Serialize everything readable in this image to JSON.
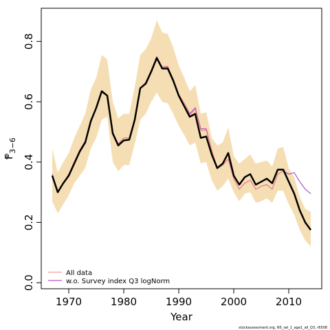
{
  "chart_data": {
    "type": "line",
    "xlabel": "Year",
    "ylabel": "F",
    "ylabel_sub": "3−6",
    "xlim": [
      1965,
      2016
    ],
    "ylim": [
      -0.02,
      0.91
    ],
    "x_ticks": [
      1970,
      1980,
      1990,
      2000,
      2010
    ],
    "y_ticks": [
      0.0,
      0.2,
      0.4,
      0.6,
      0.8
    ],
    "y_tick_labels": [
      "0.0",
      "0.2",
      "0.4",
      "0.6",
      "0.8"
    ],
    "grid": false,
    "legend_position": "bottom-left",
    "footer": "stockassessment.org, NS_sel_1_age1_all_Q3, r6508",
    "band": {
      "x": [
        1967,
        1968,
        1969,
        1970,
        1971,
        1972,
        1973,
        1974,
        1975,
        1976,
        1977,
        1978,
        1979,
        1980,
        1981,
        1982,
        1983,
        1984,
        1985,
        1986,
        1987,
        1988,
        1989,
        1990,
        1991,
        1992,
        1993,
        1994,
        1995,
        1996,
        1997,
        1998,
        1999,
        2000,
        2001,
        2002,
        2003,
        2004,
        2005,
        2006,
        2007,
        2008,
        2009,
        2010,
        2011,
        2012,
        2013,
        2014
      ],
      "lower": [
        0.27,
        0.23,
        0.26,
        0.29,
        0.33,
        0.355,
        0.38,
        0.445,
        0.48,
        0.54,
        0.55,
        0.4,
        0.37,
        0.39,
        0.39,
        0.46,
        0.54,
        0.56,
        0.6,
        0.63,
        0.6,
        0.595,
        0.56,
        0.52,
        0.49,
        0.455,
        0.465,
        0.395,
        0.4,
        0.34,
        0.305,
        0.32,
        0.345,
        0.3,
        0.27,
        0.295,
        0.3,
        0.265,
        0.27,
        0.28,
        0.265,
        0.305,
        0.305,
        0.26,
        0.225,
        0.175,
        0.14,
        0.12
      ],
      "upper": [
        0.445,
        0.365,
        0.4,
        0.43,
        0.48,
        0.52,
        0.56,
        0.64,
        0.68,
        0.755,
        0.74,
        0.6,
        0.545,
        0.56,
        0.56,
        0.65,
        0.755,
        0.775,
        0.81,
        0.87,
        0.83,
        0.825,
        0.78,
        0.72,
        0.68,
        0.635,
        0.655,
        0.56,
        0.565,
        0.48,
        0.455,
        0.465,
        0.515,
        0.42,
        0.395,
        0.41,
        0.425,
        0.395,
        0.4,
        0.405,
        0.385,
        0.445,
        0.45,
        0.38,
        0.35,
        0.285,
        0.245,
        0.235
      ]
    },
    "series": [
      {
        "name": "w.o. Survey index Q3 logNorm",
        "color": "#9933cc",
        "x": [
          1967,
          1968,
          1969,
          1970,
          1971,
          1972,
          1973,
          1974,
          1975,
          1976,
          1977,
          1978,
          1979,
          1980,
          1981,
          1982,
          1983,
          1984,
          1985,
          1986,
          1987,
          1988,
          1989,
          1990,
          1991,
          1992,
          1993,
          1994,
          1995,
          1996,
          1997,
          1998,
          1999,
          2000,
          2001,
          2002,
          2003,
          2004,
          2005,
          2006,
          2007,
          2008,
          2009,
          2010,
          2011,
          2012,
          2013,
          2014
        ],
        "y": [
          0.36,
          0.3,
          0.33,
          0.36,
          0.4,
          0.44,
          0.47,
          0.54,
          0.58,
          0.63,
          0.62,
          0.5,
          0.46,
          0.48,
          0.48,
          0.545,
          0.645,
          0.665,
          0.705,
          0.75,
          0.715,
          0.715,
          0.675,
          0.625,
          0.595,
          0.56,
          0.58,
          0.51,
          0.51,
          0.44,
          0.38,
          0.39,
          0.41,
          0.345,
          0.31,
          0.33,
          0.34,
          0.31,
          0.32,
          0.325,
          0.31,
          0.36,
          0.37,
          0.36,
          0.365,
          0.335,
          0.31,
          0.295
        ]
      },
      {
        "name": "All data",
        "color": "#f08080",
        "x": [
          1967,
          1968,
          1969,
          1970,
          1971,
          1972,
          1973,
          1974,
          1975,
          1976,
          1977,
          1978,
          1979,
          1980,
          1981,
          1982,
          1983,
          1984,
          1985,
          1986,
          1987,
          1988,
          1989,
          1990,
          1991,
          1992,
          1993,
          1994,
          1995,
          1996,
          1997,
          1998,
          1999,
          2000,
          2001,
          2002,
          2003,
          2004,
          2005,
          2006,
          2007,
          2008,
          2009,
          2010,
          2011,
          2012,
          2013,
          2014
        ],
        "y": [
          0.358,
          0.3,
          0.332,
          0.358,
          0.4,
          0.44,
          0.468,
          0.54,
          0.58,
          0.63,
          0.62,
          0.5,
          0.458,
          0.48,
          0.48,
          0.545,
          0.645,
          0.665,
          0.705,
          0.748,
          0.715,
          0.718,
          0.675,
          0.625,
          0.595,
          0.555,
          0.575,
          0.505,
          0.505,
          0.44,
          0.38,
          0.39,
          0.41,
          0.345,
          0.31,
          0.33,
          0.34,
          0.31,
          0.32,
          0.325,
          0.31,
          0.36,
          0.37,
          0.335,
          0.3,
          0.24,
          0.2,
          0.175
        ]
      },
      {
        "name": "",
        "color": "#000000",
        "x": [
          1967,
          1968,
          1969,
          1970,
          1971,
          1972,
          1973,
          1974,
          1975,
          1976,
          1977,
          1978,
          1979,
          1980,
          1981,
          1982,
          1983,
          1984,
          1985,
          1986,
          1987,
          1988,
          1989,
          1990,
          1991,
          1992,
          1993,
          1994,
          1995,
          1996,
          1997,
          1998,
          1999,
          2000,
          2001,
          2002,
          2003,
          2004,
          2005,
          2006,
          2007,
          2008,
          2009,
          2010,
          2011,
          2012,
          2013,
          2014
        ],
        "y": [
          0.355,
          0.3,
          0.33,
          0.355,
          0.395,
          0.435,
          0.465,
          0.535,
          0.58,
          0.635,
          0.62,
          0.495,
          0.455,
          0.472,
          0.474,
          0.54,
          0.645,
          0.66,
          0.7,
          0.745,
          0.71,
          0.71,
          0.67,
          0.62,
          0.585,
          0.55,
          0.56,
          0.48,
          0.485,
          0.425,
          0.38,
          0.395,
          0.43,
          0.355,
          0.325,
          0.35,
          0.36,
          0.325,
          0.335,
          0.345,
          0.33,
          0.375,
          0.375,
          0.335,
          0.295,
          0.24,
          0.2,
          0.175
        ]
      }
    ],
    "legend": [
      {
        "label": "All data",
        "color": "#f08080"
      },
      {
        "label": "w.o. Survey index Q3 logNorm",
        "color": "#9933cc"
      }
    ]
  }
}
